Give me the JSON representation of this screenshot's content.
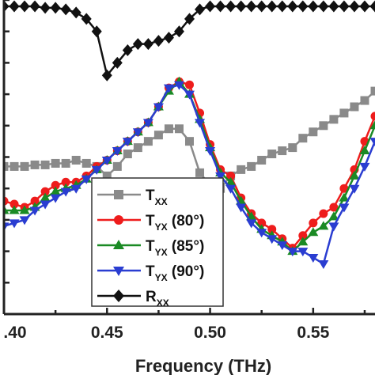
{
  "chart_data": {
    "type": "line",
    "xlabel": "Frequency (THz)",
    "ylabel": "",
    "title": "",
    "xlim": [
      0.4,
      0.58
    ],
    "ylim": [
      0,
      1.0
    ],
    "x_ticks": [
      0.4,
      0.45,
      0.5,
      0.55
    ],
    "x_tick_labels": [
      ".40",
      "0.45",
      "0.50",
      "0.55"
    ],
    "grid": false,
    "legend_position": "bottom-center",
    "series": [
      {
        "name": "Txx",
        "legend_main": "T",
        "legend_sub": "XX",
        "legend_suffix": "",
        "color": "#8a8a8a",
        "marker": "square",
        "x": [
          0.4,
          0.405,
          0.41,
          0.415,
          0.42,
          0.425,
          0.43,
          0.435,
          0.44,
          0.445,
          0.45,
          0.455,
          0.46,
          0.465,
          0.47,
          0.475,
          0.48,
          0.485,
          0.49,
          0.495,
          0.5,
          0.505,
          0.51,
          0.515,
          0.52,
          0.525,
          0.53,
          0.535,
          0.54,
          0.545,
          0.55,
          0.555,
          0.56,
          0.565,
          0.57,
          0.575,
          0.58
        ],
        "y": [
          0.47,
          0.47,
          0.47,
          0.475,
          0.475,
          0.48,
          0.48,
          0.49,
          0.48,
          0.47,
          0.44,
          0.47,
          0.51,
          0.53,
          0.55,
          0.57,
          0.59,
          0.59,
          0.55,
          0.45,
          0.41,
          0.4,
          0.44,
          0.46,
          0.47,
          0.49,
          0.51,
          0.52,
          0.53,
          0.56,
          0.58,
          0.6,
          0.62,
          0.64,
          0.66,
          0.68,
          0.71
        ]
      },
      {
        "name": "TYX (80°)",
        "legend_main": "T",
        "legend_sub": "YX",
        "legend_suffix": " (80°)",
        "color": "#ee1c1c",
        "marker": "circle",
        "x": [
          0.4,
          0.405,
          0.41,
          0.415,
          0.42,
          0.425,
          0.43,
          0.435,
          0.44,
          0.445,
          0.45,
          0.455,
          0.46,
          0.465,
          0.47,
          0.475,
          0.48,
          0.485,
          0.49,
          0.495,
          0.5,
          0.505,
          0.51,
          0.515,
          0.52,
          0.525,
          0.53,
          0.535,
          0.54,
          0.545,
          0.55,
          0.555,
          0.56,
          0.565,
          0.57,
          0.575,
          0.58
        ],
        "y": [
          0.36,
          0.35,
          0.34,
          0.36,
          0.39,
          0.41,
          0.42,
          0.42,
          0.44,
          0.47,
          0.49,
          0.52,
          0.55,
          0.58,
          0.61,
          0.66,
          0.72,
          0.74,
          0.73,
          0.64,
          0.54,
          0.46,
          0.44,
          0.37,
          0.32,
          0.29,
          0.27,
          0.24,
          0.21,
          0.25,
          0.29,
          0.32,
          0.34,
          0.4,
          0.46,
          0.55,
          0.63
        ]
      },
      {
        "name": "TYX (85°)",
        "legend_main": "T",
        "legend_sub": "YX",
        "legend_suffix": " (85°)",
        "color": "#1a8a24",
        "marker": "triangle-up",
        "x": [
          0.4,
          0.405,
          0.41,
          0.415,
          0.42,
          0.425,
          0.43,
          0.435,
          0.44,
          0.445,
          0.45,
          0.455,
          0.46,
          0.465,
          0.47,
          0.475,
          0.48,
          0.485,
          0.49,
          0.495,
          0.5,
          0.505,
          0.51,
          0.515,
          0.52,
          0.525,
          0.53,
          0.535,
          0.54,
          0.545,
          0.55,
          0.555,
          0.56,
          0.565,
          0.57,
          0.575,
          0.58
        ],
        "y": [
          0.33,
          0.33,
          0.33,
          0.34,
          0.37,
          0.39,
          0.4,
          0.41,
          0.43,
          0.46,
          0.49,
          0.52,
          0.55,
          0.58,
          0.61,
          0.66,
          0.71,
          0.74,
          0.7,
          0.62,
          0.53,
          0.45,
          0.42,
          0.36,
          0.31,
          0.27,
          0.25,
          0.23,
          0.2,
          0.23,
          0.26,
          0.28,
          0.31,
          0.37,
          0.44,
          0.52,
          0.6
        ]
      },
      {
        "name": "TYX (90°)",
        "legend_main": "T",
        "legend_sub": "YX",
        "legend_suffix": " (90°)",
        "color": "#2a3dd1",
        "marker": "triangle-down",
        "x": [
          0.4,
          0.405,
          0.41,
          0.415,
          0.42,
          0.425,
          0.43,
          0.435,
          0.44,
          0.445,
          0.45,
          0.455,
          0.46,
          0.465,
          0.47,
          0.475,
          0.48,
          0.485,
          0.49,
          0.495,
          0.5,
          0.505,
          0.51,
          0.515,
          0.52,
          0.525,
          0.53,
          0.535,
          0.54,
          0.545,
          0.55,
          0.555,
          0.56,
          0.565,
          0.57,
          0.575,
          0.58
        ],
        "y": [
          0.28,
          0.29,
          0.3,
          0.33,
          0.35,
          0.37,
          0.39,
          0.4,
          0.43,
          0.46,
          0.49,
          0.52,
          0.55,
          0.58,
          0.61,
          0.66,
          0.72,
          0.73,
          0.7,
          0.61,
          0.52,
          0.44,
          0.4,
          0.34,
          0.29,
          0.26,
          0.24,
          0.22,
          0.2,
          0.2,
          0.18,
          0.16,
          0.28,
          0.34,
          0.4,
          0.47,
          0.55
        ]
      },
      {
        "name": "Rxx",
        "legend_main": "R",
        "legend_sub": "XX",
        "legend_suffix": "",
        "color": "#111111",
        "marker": "diamond",
        "x": [
          0.4,
          0.405,
          0.41,
          0.415,
          0.42,
          0.425,
          0.43,
          0.435,
          0.44,
          0.445,
          0.45,
          0.455,
          0.46,
          0.465,
          0.47,
          0.475,
          0.48,
          0.485,
          0.49,
          0.495,
          0.5,
          0.505,
          0.51,
          0.515,
          0.52,
          0.525,
          0.53,
          0.535,
          0.54,
          0.545,
          0.55,
          0.555,
          0.56,
          0.565,
          0.57,
          0.575,
          0.58
        ],
        "y": [
          0.98,
          0.98,
          0.98,
          0.98,
          0.975,
          0.975,
          0.97,
          0.96,
          0.94,
          0.9,
          0.76,
          0.8,
          0.84,
          0.86,
          0.86,
          0.87,
          0.88,
          0.9,
          0.94,
          0.97,
          0.98,
          0.98,
          0.98,
          0.98,
          0.98,
          0.98,
          0.98,
          0.98,
          0.98,
          0.98,
          0.98,
          0.98,
          0.98,
          0.98,
          0.98,
          0.98,
          0.98
        ]
      }
    ]
  }
}
